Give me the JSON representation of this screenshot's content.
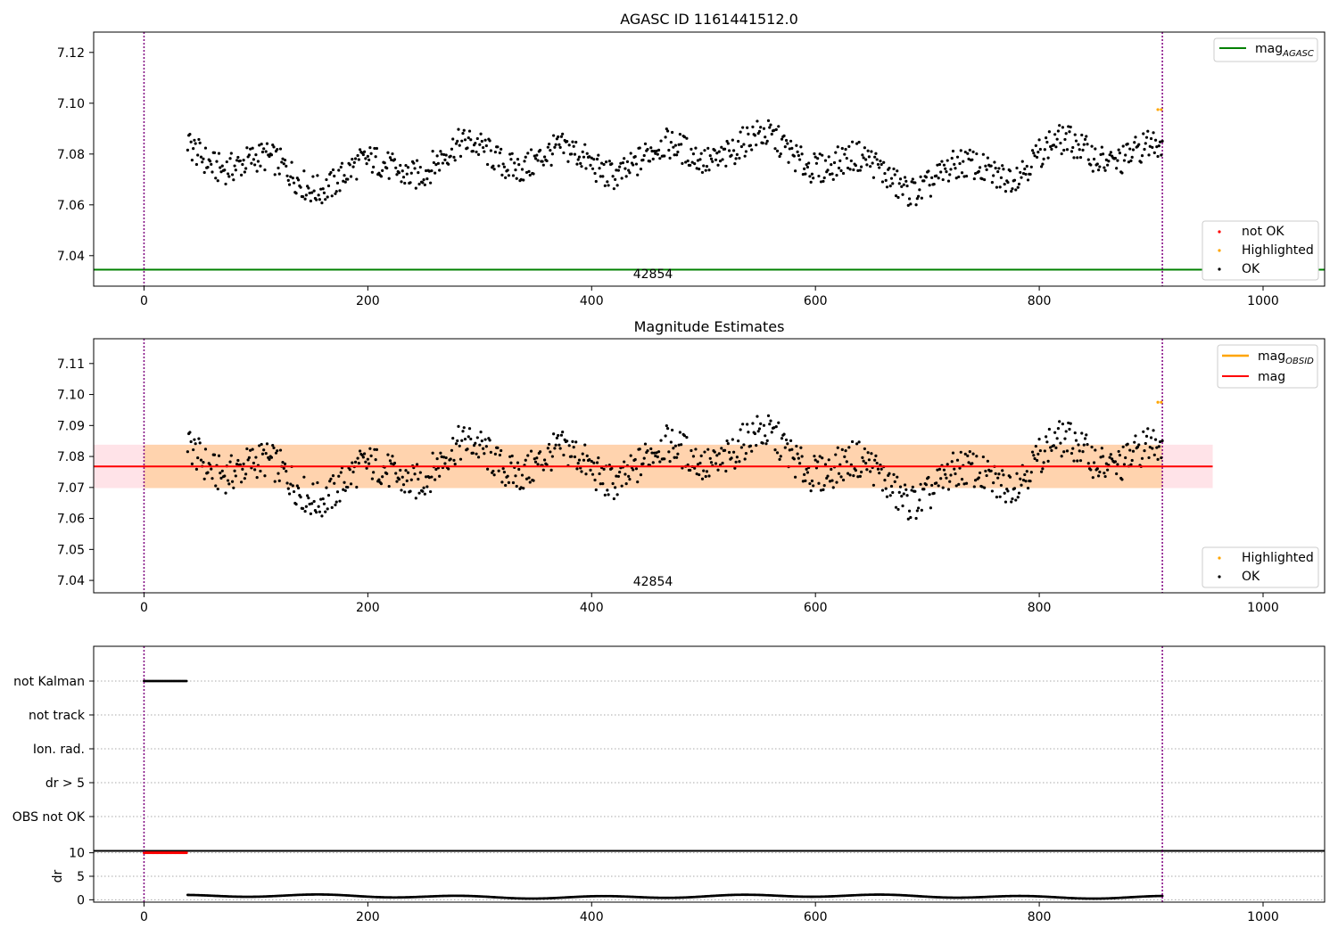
{
  "colors": {
    "ok": "#000000",
    "not_ok": "#ff0000",
    "highlighted": "#ffa500",
    "mag_agasc": "#008000",
    "mag": "#ff0000",
    "mag_obsid": "#ffa500",
    "obsid_line": "#800080",
    "band_fill": "#ffc0cb"
  },
  "chart_data": [
    {
      "type": "scatter",
      "title": "AGASC ID 1161441512.0",
      "xlim": [
        -45,
        1055
      ],
      "ylim": [
        7.028,
        7.128
      ],
      "xticks": [
        0,
        200,
        400,
        600,
        800,
        1000
      ],
      "yticks": [
        7.04,
        7.06,
        7.08,
        7.1,
        7.12
      ],
      "ytick_labels": [
        "7.04",
        "7.06",
        "7.08",
        "7.10",
        "7.12"
      ],
      "obsid_boundaries": [
        0,
        910
      ],
      "obsid_label": {
        "text": "42854",
        "x": 455
      },
      "reference_lines": [
        {
          "name": "mag_AGASC",
          "y": 7.0345,
          "x_range": [
            -45,
            1055
          ]
        }
      ],
      "legend_lines": [
        {
          "label": "mag",
          "subscript": "AGASC",
          "color_key": "mag_agasc"
        }
      ],
      "legend_points": [
        {
          "label": "not OK",
          "color_key": "not_ok"
        },
        {
          "label": "Highlighted",
          "color_key": "highlighted"
        },
        {
          "label": "OK",
          "color_key": "ok"
        }
      ],
      "series_summary": {
        "x_range": [
          39,
          910
        ],
        "mean": 7.0775,
        "min": 7.059,
        "max": 7.092,
        "highlighted_points": [
          {
            "x": 906,
            "y": 7.0975
          },
          {
            "x": 909,
            "y": 7.0975
          }
        ]
      }
    },
    {
      "type": "scatter",
      "title": "Magnitude Estimates",
      "xlim": [
        -45,
        1055
      ],
      "ylim": [
        7.036,
        7.118
      ],
      "xticks": [
        0,
        200,
        400,
        600,
        800,
        1000
      ],
      "yticks": [
        7.04,
        7.05,
        7.06,
        7.07,
        7.08,
        7.09,
        7.1,
        7.11
      ],
      "ytick_labels": [
        "7.04",
        "7.05",
        "7.06",
        "7.07",
        "7.08",
        "7.09",
        "7.10",
        "7.11"
      ],
      "obsid_boundaries": [
        0,
        910
      ],
      "obsid_label": {
        "text": "42854",
        "x": 455
      },
      "mag_band": {
        "center": 7.0768,
        "low": 7.0698,
        "high": 7.0838,
        "x_range": [
          -45,
          955
        ]
      },
      "mag_obsid_band": {
        "low": 7.0698,
        "high": 7.0838,
        "x_range": [
          0,
          910
        ]
      },
      "mag_line": {
        "y": 7.0768,
        "x_range": [
          -45,
          955
        ]
      },
      "legend_lines": [
        {
          "label": "mag",
          "subscript": "OBSID",
          "color_key": "mag_obsid"
        },
        {
          "label": "mag",
          "subscript": "",
          "color_key": "mag"
        }
      ],
      "legend_points": [
        {
          "label": "Highlighted",
          "color_key": "highlighted"
        },
        {
          "label": "OK",
          "color_key": "ok"
        }
      ],
      "highlighted_points": [
        {
          "x": 906,
          "y": 7.0975
        },
        {
          "x": 909,
          "y": 7.0975
        }
      ]
    },
    {
      "type": "scatter",
      "title": "",
      "xlim": [
        -45,
        1055
      ],
      "categories": [
        "not Kalman",
        "not track",
        "Ion. rad.",
        "dr > 5",
        "OBS not OK"
      ],
      "flag_points": [
        {
          "category": "not Kalman",
          "x_range": [
            0,
            38
          ],
          "color_key": "ok"
        }
      ],
      "obsid_boundaries": [
        0,
        910
      ]
    },
    {
      "type": "scatter",
      "title": "",
      "ylabel": "dr",
      "xlim": [
        -45,
        1055
      ],
      "ylim": [
        -0.5,
        10.5
      ],
      "yticks": [
        0,
        5,
        10
      ],
      "xticks": [
        0,
        200,
        400,
        600,
        800,
        1000
      ],
      "capped_points": {
        "x_range": [
          0,
          38
        ],
        "y": 10,
        "color_key": "not_ok"
      },
      "dr_summary": {
        "x_range": [
          39,
          910
        ],
        "typical": 0.7,
        "max": 1.2
      },
      "obsid_boundaries": [
        0,
        910
      ]
    }
  ]
}
